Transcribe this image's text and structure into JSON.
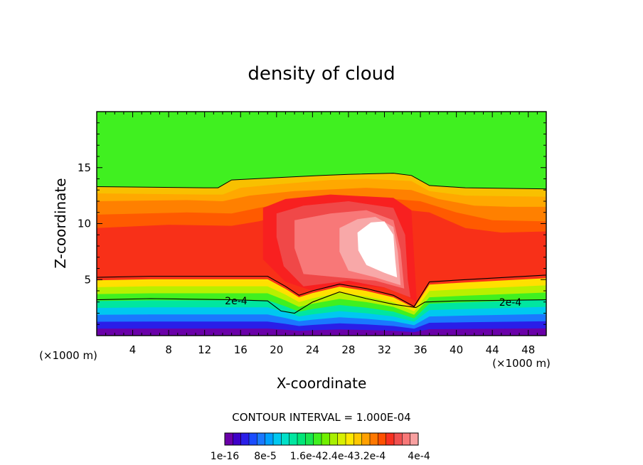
{
  "chart_data": {
    "type": "heatmap",
    "title": "density of cloud",
    "xlabel": "X-coordinate",
    "ylabel": "Z-coordinate",
    "x_unit": "(×1000 m)",
    "x_unit_right": "(×1000 m)",
    "xlim": [
      0,
      50
    ],
    "ylim": [
      0,
      20
    ],
    "x_ticks": [
      4,
      8,
      12,
      16,
      20,
      24,
      28,
      32,
      36,
      40,
      44,
      48
    ],
    "y_ticks": [
      5,
      10,
      15
    ],
    "contour_interval_text": "CONTOUR INTERVAL = 1.000E-04",
    "contour_labels": [
      {
        "text": "2e-4",
        "x": 15.5,
        "z": 3.1
      },
      {
        "text": "2e-4",
        "x": 46,
        "z": 3.0
      }
    ],
    "colorbar_labels": [
      "1e-16",
      "8e-5",
      "1.6e-4",
      "2.4e-4",
      "3.2e-4",
      "4e-4"
    ],
    "colorbar_label_texts": [
      "1e-16",
      "8e-5",
      "1.6e-42.4e-43.2e-4",
      "4e-4"
    ],
    "colorbar_colors": [
      "#6a00a8",
      "#3f00c8",
      "#2a1ee8",
      "#1a4cff",
      "#1a78ff",
      "#00a0ff",
      "#00c8f0",
      "#00e0c8",
      "#00e6a0",
      "#00e678",
      "#18e650",
      "#40f020",
      "#70f000",
      "#a8f000",
      "#d8f000",
      "#ffe800",
      "#ffc800",
      "#ffa000",
      "#ff7800",
      "#ff5000",
      "#f83020",
      "#f05050",
      "#f87878",
      "#f8a0a0"
    ],
    "levels": [
      {
        "name": "2e-4",
        "color": "#f8c000",
        "profile": [
          [
            0,
            13.3
          ],
          [
            12,
            13.2
          ],
          [
            13.5,
            13.2
          ],
          [
            15,
            13.9
          ],
          [
            20,
            14.1
          ],
          [
            25,
            14.3
          ],
          [
            28,
            14.4
          ],
          [
            33,
            14.5
          ],
          [
            35,
            14.3
          ],
          [
            37,
            13.4
          ],
          [
            41,
            13.2
          ],
          [
            50,
            13.1
          ]
        ]
      },
      {
        "name": "2.2e-4",
        "color": "#ffa800",
        "profile": [
          [
            0,
            12.7
          ],
          [
            12,
            12.6
          ],
          [
            14,
            12.6
          ],
          [
            16,
            13.2
          ],
          [
            20,
            13.5
          ],
          [
            26,
            13.9
          ],
          [
            30,
            14.0
          ],
          [
            35,
            13.8
          ],
          [
            37,
            12.9
          ],
          [
            41,
            12.5
          ],
          [
            50,
            12.4
          ]
        ]
      },
      {
        "name": "2.4e-4",
        "color": "#ff8000",
        "profile": [
          [
            0,
            12.0
          ],
          [
            10,
            12.1
          ],
          [
            14,
            12.0
          ],
          [
            17,
            12.5
          ],
          [
            22,
            12.9
          ],
          [
            30,
            13.2
          ],
          [
            35,
            13.0
          ],
          [
            38,
            12.2
          ],
          [
            42,
            11.6
          ],
          [
            46,
            11.5
          ],
          [
            50,
            11.5
          ]
        ]
      },
      {
        "name": "2.6e-4",
        "color": "#ff5a00",
        "profile": [
          [
            0,
            10.8
          ],
          [
            10,
            11.0
          ],
          [
            15,
            10.9
          ],
          [
            18,
            11.4
          ],
          [
            22,
            12.0
          ],
          [
            30,
            12.4
          ],
          [
            36,
            12.0
          ],
          [
            40,
            11.0
          ],
          [
            44,
            10.3
          ],
          [
            50,
            10.2
          ]
        ]
      },
      {
        "name": "2.8e-4",
        "color": "#f83018",
        "profile": [
          [
            0,
            9.6
          ],
          [
            8,
            9.9
          ],
          [
            15,
            9.8
          ],
          [
            18,
            10.2
          ],
          [
            22,
            11.0
          ],
          [
            30,
            11.6
          ],
          [
            37,
            11.0
          ],
          [
            41,
            9.6
          ],
          [
            45,
            9.2
          ],
          [
            50,
            9.3
          ]
        ]
      }
    ],
    "lower_levels": [
      {
        "name": "2e-4 lower",
        "profile": [
          [
            0,
            5.2
          ],
          [
            6,
            5.3
          ],
          [
            14,
            5.3
          ],
          [
            19,
            5.3
          ],
          [
            21,
            4.4
          ],
          [
            22.5,
            3.6
          ],
          [
            24,
            4.0
          ],
          [
            27,
            4.6
          ],
          [
            30,
            4.2
          ],
          [
            33,
            3.6
          ],
          [
            35.3,
            2.6
          ],
          [
            37,
            4.8
          ],
          [
            41,
            5.0
          ],
          [
            50,
            5.4
          ]
        ]
      },
      {
        "name": "inner",
        "profile": [
          [
            0,
            3.2
          ],
          [
            6,
            3.3
          ],
          [
            15,
            3.2
          ],
          [
            19,
            3.1
          ],
          [
            20.5,
            2.2
          ],
          [
            22,
            2.0
          ],
          [
            24,
            3.0
          ],
          [
            27,
            3.9
          ],
          [
            30,
            3.3
          ],
          [
            33,
            2.8
          ],
          [
            35.5,
            2.5
          ],
          [
            36.5,
            3.0
          ],
          [
            40,
            3.1
          ],
          [
            50,
            3.2
          ]
        ]
      }
    ],
    "core_levels": [
      {
        "name": "3e-4",
        "color": "#f82020",
        "bounds": [
          [
            18.5,
            11.4
          ],
          [
            21,
            12.2
          ],
          [
            26,
            12.6
          ],
          [
            33,
            12.3
          ],
          [
            35,
            11.2
          ],
          [
            35.3,
            7
          ],
          [
            35.6,
            3
          ],
          [
            33,
            4.2
          ],
          [
            28,
            4.6
          ],
          [
            24,
            4.0
          ],
          [
            21,
            4.8
          ],
          [
            18.5,
            6.8
          ]
        ]
      },
      {
        "name": "3.2e-4",
        "color": "#f04848",
        "bounds": [
          [
            20,
            10.9
          ],
          [
            23,
            11.6
          ],
          [
            28,
            12.0
          ],
          [
            33,
            11.4
          ],
          [
            34.3,
            9
          ],
          [
            34.6,
            5
          ],
          [
            34.9,
            3.4
          ],
          [
            32,
            4.3
          ],
          [
            28,
            4.9
          ],
          [
            23,
            4.4
          ],
          [
            20.8,
            6.2
          ],
          [
            20,
            8.8
          ]
        ]
      },
      {
        "name": "3.6e-4",
        "color": "#f87878",
        "bounds": [
          [
            22,
            10.3
          ],
          [
            26,
            10.9
          ],
          [
            30,
            11.2
          ],
          [
            33,
            10.3
          ],
          [
            33.8,
            7.6
          ],
          [
            34.2,
            4.2
          ],
          [
            31,
            4.9
          ],
          [
            27,
            5.2
          ],
          [
            23,
            5.5
          ],
          [
            22,
            7.8
          ]
        ]
      },
      {
        "name": "3.8e-4",
        "color": "#f8a8a8",
        "bounds": [
          [
            27,
            9.6
          ],
          [
            29,
            10.4
          ],
          [
            31,
            10.6
          ],
          [
            33,
            9.7
          ],
          [
            33.5,
            7.4
          ],
          [
            33.8,
            4.5
          ],
          [
            31,
            5.2
          ],
          [
            28,
            5.8
          ],
          [
            27,
            7.5
          ]
        ]
      },
      {
        "name": "4e-4",
        "color": "#ffffff",
        "bounds": [
          [
            29,
            9.2
          ],
          [
            30.5,
            10.1
          ],
          [
            32,
            10.2
          ],
          [
            33,
            9.0
          ],
          [
            33.2,
            6.8
          ],
          [
            33.4,
            5.2
          ],
          [
            32,
            5.6
          ],
          [
            30,
            6.3
          ],
          [
            29.1,
            7.6
          ]
        ]
      }
    ]
  }
}
